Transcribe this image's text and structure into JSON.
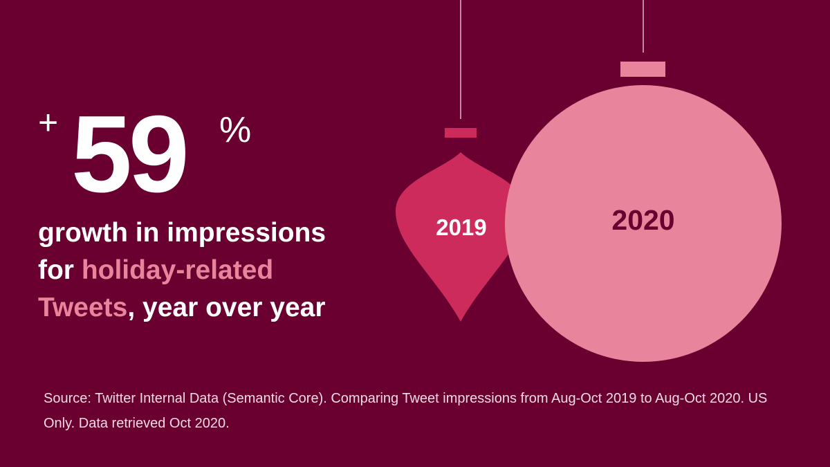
{
  "stat": {
    "prefix": "+",
    "value": "59",
    "suffix": "%"
  },
  "headline": {
    "part1": "growth in impressions",
    "part2_pre": "for ",
    "highlight1": "holiday-related",
    "highlight2": "Tweets",
    "part3": ", year over year"
  },
  "ornaments": {
    "small_label": "2019",
    "large_label": "2020"
  },
  "source": "Source: Twitter Internal Data (Semantic Core). Comparing Tweet impressions from Aug-Oct 2019 to Aug-Oct 2020. US Only. Data retrieved Oct 2020.",
  "colors": {
    "background": "#690030",
    "small_ornament": "#cc2b5c",
    "large_ornament": "#e8849b",
    "highlight_text": "#e8849b",
    "large_label": "#690030"
  }
}
